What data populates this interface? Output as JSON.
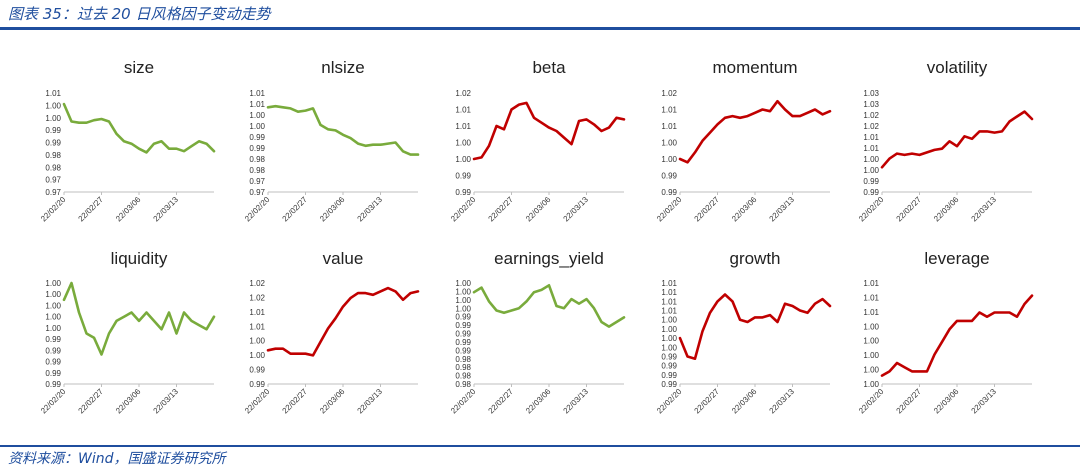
{
  "header": {
    "title": "图表 35：过去 20 日风格因子变动走势"
  },
  "footer": {
    "source": "资料来源：Wind，国盛证券研究所"
  },
  "colors": {
    "green": "#79ab3c",
    "red": "#c00000",
    "brand": "#1f4e9e"
  },
  "x_tick_labels": [
    "22/02/20",
    "22/02/27",
    "22/03/06",
    "22/03/13"
  ],
  "chart_data": [
    {
      "type": "line",
      "title": "size",
      "color": "green",
      "yticks": [
        "1.01",
        "1.00",
        "1.00",
        "0.99",
        "0.99",
        "0.98",
        "0.98",
        "0.97",
        "0.97"
      ],
      "ylim": [
        0.97,
        1.01
      ],
      "x": [
        0,
        1,
        2,
        3,
        4,
        5,
        6,
        7,
        8,
        9,
        10,
        11,
        12,
        13,
        14,
        15,
        16,
        17,
        18,
        19,
        20
      ],
      "values": [
        1.0055,
        0.9985,
        0.998,
        0.998,
        0.999,
        0.9995,
        0.9985,
        0.9935,
        0.9905,
        0.9895,
        0.9875,
        0.986,
        0.9895,
        0.9905,
        0.9875,
        0.9875,
        0.9865,
        0.9885,
        0.9905,
        0.9895,
        0.9865
      ]
    },
    {
      "type": "line",
      "title": "nlsize",
      "color": "green",
      "yticks": [
        "1.01",
        "1.01",
        "1.00",
        "1.00",
        "0.99",
        "0.99",
        "0.98",
        "0.98",
        "0.97",
        "0.97"
      ],
      "ylim": [
        0.97,
        1.015
      ],
      "x": [
        0,
        1,
        2,
        3,
        4,
        5,
        6,
        7,
        8,
        9,
        10,
        11,
        12,
        13,
        14,
        15,
        16,
        17,
        18,
        19,
        20
      ],
      "values": [
        1.0085,
        1.009,
        1.0085,
        1.008,
        1.0065,
        1.007,
        1.008,
        1.0005,
        0.9985,
        0.998,
        0.996,
        0.9945,
        0.992,
        0.991,
        0.9915,
        0.9915,
        0.992,
        0.9925,
        0.9885,
        0.987,
        0.987
      ]
    },
    {
      "type": "line",
      "title": "beta",
      "color": "red",
      "yticks": [
        "1.02",
        "1.01",
        "1.01",
        "1.00",
        "1.00",
        "0.99",
        "0.99"
      ],
      "ylim": [
        0.99,
        1.02
      ],
      "x": [
        0,
        1,
        2,
        3,
        4,
        5,
        6,
        7,
        8,
        9,
        10,
        11,
        12,
        13,
        14,
        15,
        16,
        17,
        18,
        19,
        20
      ],
      "values": [
        1.0,
        1.0005,
        1.004,
        1.01,
        1.009,
        1.015,
        1.0165,
        1.017,
        1.0125,
        1.011,
        1.0095,
        1.0085,
        1.0065,
        1.0045,
        1.0115,
        1.012,
        1.0105,
        1.0085,
        1.0095,
        1.0125,
        1.012
      ]
    },
    {
      "type": "line",
      "title": "momentum",
      "color": "red",
      "yticks": [
        "1.02",
        "1.01",
        "1.01",
        "1.00",
        "1.00",
        "0.99",
        "0.99"
      ],
      "ylim": [
        0.99,
        1.02
      ],
      "x": [
        0,
        1,
        2,
        3,
        4,
        5,
        6,
        7,
        8,
        9,
        10,
        11,
        12,
        13,
        14,
        15,
        16,
        17,
        18,
        19,
        20
      ],
      "values": [
        1.0,
        0.999,
        1.002,
        1.0055,
        1.008,
        1.0105,
        1.0125,
        1.013,
        1.0125,
        1.013,
        1.014,
        1.015,
        1.0145,
        1.0175,
        1.015,
        1.013,
        1.013,
        1.014,
        1.015,
        1.0135,
        1.0145
      ]
    },
    {
      "type": "line",
      "title": "volatility",
      "color": "red",
      "yticks": [
        "1.03",
        "1.03",
        "1.02",
        "1.02",
        "1.01",
        "1.01",
        "1.00",
        "1.00",
        "0.99",
        "0.99"
      ],
      "ylim": [
        0.99,
        1.03
      ],
      "x": [
        0,
        1,
        2,
        3,
        4,
        5,
        6,
        7,
        8,
        9,
        10,
        11,
        12,
        13,
        14,
        15,
        16,
        17,
        18,
        19,
        20
      ],
      "values": [
        1.0,
        1.0035,
        1.0055,
        1.005,
        1.0055,
        1.005,
        1.006,
        1.007,
        1.0075,
        1.0105,
        1.0085,
        1.0125,
        1.0115,
        1.0145,
        1.0145,
        1.014,
        1.0145,
        1.0185,
        1.0205,
        1.0225,
        1.0195
      ]
    },
    {
      "type": "line",
      "title": "liquidity",
      "color": "green",
      "yticks": [
        "1.00",
        "1.00",
        "1.00",
        "1.00",
        "1.00",
        "0.99",
        "0.99",
        "0.99",
        "0.99",
        "0.99"
      ],
      "ylim": [
        0.99,
        1.002
      ],
      "x": [
        0,
        1,
        2,
        3,
        4,
        5,
        6,
        7,
        8,
        9,
        10,
        11,
        12,
        13,
        14,
        15,
        16,
        17,
        18,
        19,
        20
      ],
      "values": [
        1.0,
        1.002,
        0.9985,
        0.996,
        0.9955,
        0.9935,
        0.996,
        0.9975,
        0.998,
        0.9985,
        0.9975,
        0.9985,
        0.9975,
        0.9965,
        0.9985,
        0.996,
        0.9985,
        0.9975,
        0.997,
        0.9965,
        0.998
      ]
    },
    {
      "type": "line",
      "title": "value",
      "color": "red",
      "yticks": [
        "1.02",
        "1.02",
        "1.01",
        "1.01",
        "1.00",
        "1.00",
        "0.99",
        "0.99"
      ],
      "ylim": [
        0.99,
        1.02
      ],
      "x": [
        0,
        1,
        2,
        3,
        4,
        5,
        6,
        7,
        8,
        9,
        10,
        11,
        12,
        13,
        14,
        15,
        16,
        17,
        18,
        19,
        20
      ],
      "values": [
        1.0,
        1.0005,
        1.0005,
        0.999,
        0.999,
        0.999,
        0.9985,
        1.0025,
        1.0065,
        1.0095,
        1.013,
        1.0155,
        1.017,
        1.017,
        1.0165,
        1.0175,
        1.0185,
        1.0175,
        1.015,
        1.017,
        1.0175
      ]
    },
    {
      "type": "line",
      "title": "earnings_yield",
      "color": "green",
      "yticks": [
        "1.00",
        "1.00",
        "1.00",
        "1.00",
        "0.99",
        "0.99",
        "0.99",
        "0.99",
        "0.99",
        "0.98",
        "0.98",
        "0.98",
        "0.98"
      ],
      "ylim": [
        0.98,
        1.002
      ],
      "x": [
        0,
        1,
        2,
        3,
        4,
        5,
        6,
        7,
        8,
        9,
        10,
        11,
        12,
        13,
        14,
        15,
        16,
        17,
        18,
        19,
        20
      ],
      "values": [
        1.0,
        1.001,
        0.998,
        0.996,
        0.9955,
        0.996,
        0.9965,
        0.998,
        1.0,
        1.0005,
        1.0015,
        0.997,
        0.9965,
        0.9985,
        0.9975,
        0.9985,
        0.9965,
        0.9935,
        0.9925,
        0.9935,
        0.9945
      ]
    },
    {
      "type": "line",
      "title": "growth",
      "color": "red",
      "yticks": [
        "1.01",
        "1.01",
        "1.01",
        "1.01",
        "1.00",
        "1.00",
        "1.00",
        "1.00",
        "0.99",
        "0.99",
        "0.99",
        "0.99"
      ],
      "ylim": [
        0.99,
        1.012
      ],
      "x": [
        0,
        1,
        2,
        3,
        4,
        5,
        6,
        7,
        8,
        9,
        10,
        11,
        12,
        13,
        14,
        15,
        16,
        17,
        18,
        19,
        20
      ],
      "values": [
        1.0,
        0.996,
        0.9955,
        1.0015,
        1.0055,
        1.008,
        1.0095,
        1.008,
        1.004,
        1.0035,
        1.0045,
        1.0045,
        1.005,
        1.0035,
        1.0075,
        1.007,
        1.006,
        1.0055,
        1.0075,
        1.0085,
        1.007
      ]
    },
    {
      "type": "line",
      "title": "leverage",
      "color": "red",
      "yticks": [
        "1.01",
        "1.01",
        "1.01",
        "1.00",
        "1.00",
        "1.00",
        "1.00",
        "1.00"
      ],
      "ylim": [
        0.999,
        1.011
      ],
      "x": [
        0,
        1,
        2,
        3,
        4,
        5,
        6,
        7,
        8,
        9,
        10,
        11,
        12,
        13,
        14,
        15,
        16,
        17,
        18,
        19,
        20
      ],
      "values": [
        1.0,
        1.0005,
        1.0015,
        1.001,
        1.0005,
        1.0005,
        1.0005,
        1.0025,
        1.004,
        1.0055,
        1.0065,
        1.0065,
        1.0065,
        1.0075,
        1.007,
        1.0075,
        1.0075,
        1.0075,
        1.007,
        1.0085,
        1.0095
      ]
    }
  ]
}
